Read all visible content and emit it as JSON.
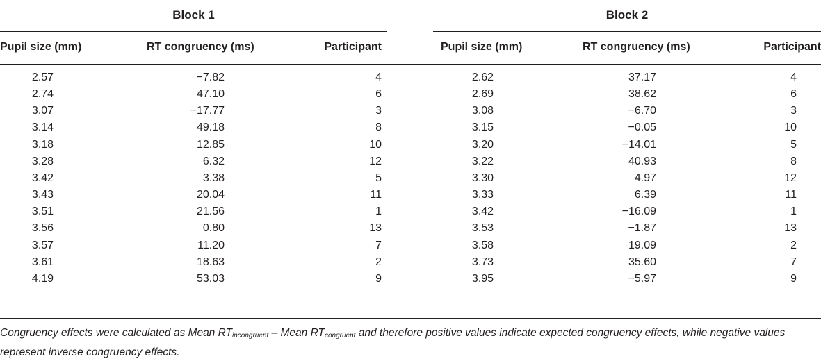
{
  "blocks": [
    {
      "title": "Block 1"
    },
    {
      "title": "Block 2"
    }
  ],
  "headers": {
    "pupil": "Pupil size (mm)",
    "rt": "RT congruency (ms)",
    "participant": "Participant"
  },
  "block1_rows": [
    {
      "pupil": "2.57",
      "rt": "−7.82",
      "participant": "4"
    },
    {
      "pupil": "2.74",
      "rt": "47.10",
      "participant": "6"
    },
    {
      "pupil": "3.07",
      "rt": "−17.77",
      "participant": "3"
    },
    {
      "pupil": "3.14",
      "rt": "49.18",
      "participant": "8"
    },
    {
      "pupil": "3.18",
      "rt": "12.85",
      "participant": "10"
    },
    {
      "pupil": "3.28",
      "rt": "6.32",
      "participant": "12"
    },
    {
      "pupil": "3.42",
      "rt": "3.38",
      "participant": "5"
    },
    {
      "pupil": "3.43",
      "rt": "20.04",
      "participant": "11"
    },
    {
      "pupil": "3.51",
      "rt": "21.56",
      "participant": "1"
    },
    {
      "pupil": "3.56",
      "rt": "0.80",
      "participant": "13"
    },
    {
      "pupil": "3.57",
      "rt": "11.20",
      "participant": "7"
    },
    {
      "pupil": "3.61",
      "rt": "18.63",
      "participant": "2"
    },
    {
      "pupil": "4.19",
      "rt": "53.03",
      "participant": "9"
    }
  ],
  "block2_rows": [
    {
      "pupil": "2.62",
      "rt": "37.17",
      "participant": "4"
    },
    {
      "pupil": "2.69",
      "rt": "38.62",
      "participant": "6"
    },
    {
      "pupil": "3.08",
      "rt": "−6.70",
      "participant": "3"
    },
    {
      "pupil": "3.15",
      "rt": "−0.05",
      "participant": "10"
    },
    {
      "pupil": "3.20",
      "rt": "−14.01",
      "participant": "5"
    },
    {
      "pupil": "3.22",
      "rt": "40.93",
      "participant": "8"
    },
    {
      "pupil": "3.30",
      "rt": "4.97",
      "participant": "12"
    },
    {
      "pupil": "3.33",
      "rt": "6.39",
      "participant": "11"
    },
    {
      "pupil": "3.42",
      "rt": "−16.09",
      "participant": "1"
    },
    {
      "pupil": "3.53",
      "rt": "−1.87",
      "participant": "13"
    },
    {
      "pupil": "3.58",
      "rt": "19.09",
      "participant": "2"
    },
    {
      "pupil": "3.73",
      "rt": "35.60",
      "participant": "7"
    },
    {
      "pupil": "3.95",
      "rt": "−5.97",
      "participant": "9"
    }
  ],
  "footnote": {
    "part1": "Congruency effects were calculated as Mean RT",
    "sub1": "incongruent",
    "part2": " – Mean RT",
    "sub2": "congruent",
    "part3": " and therefore positive values indicate expected congruency effects, while negative values represent inverse congruency effects."
  }
}
